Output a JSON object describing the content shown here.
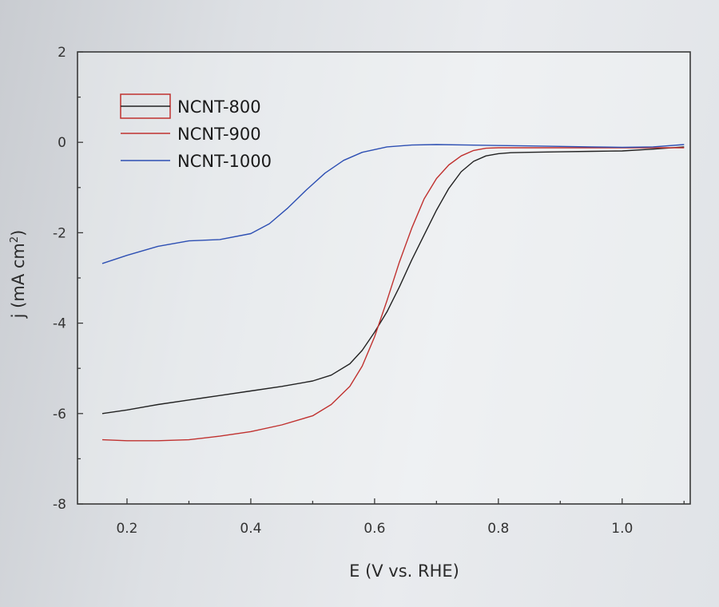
{
  "chart_data": {
    "type": "line",
    "xlabel": "E (V vs. RHE)",
    "ylabel": "j (mA cm",
    "ylabel_sup": "2",
    "ylabel_close": ")",
    "xlim": [
      0.12,
      1.11
    ],
    "ylim": [
      -8,
      2
    ],
    "xticks": [
      0.2,
      0.4,
      0.6,
      0.8,
      1.0
    ],
    "xtick_labels": [
      "0.2",
      "0.4",
      "0.6",
      "0.8",
      "1.0"
    ],
    "yticks": [
      2,
      0,
      -2,
      -4,
      -6,
      -8
    ],
    "ytick_labels": [
      "2",
      "0",
      "-2",
      "-4",
      "-6",
      "-8"
    ],
    "grid": false,
    "legend_position": "top-left",
    "series": [
      {
        "name": "NCNT-800",
        "color": "#222222",
        "x": [
          0.16,
          0.2,
          0.25,
          0.3,
          0.35,
          0.4,
          0.45,
          0.5,
          0.53,
          0.56,
          0.58,
          0.6,
          0.62,
          0.64,
          0.66,
          0.68,
          0.7,
          0.72,
          0.74,
          0.76,
          0.78,
          0.8,
          0.82,
          0.85,
          0.9,
          0.95,
          1.0,
          1.05,
          1.1
        ],
        "y": [
          -6.0,
          -5.92,
          -5.8,
          -5.7,
          -5.6,
          -5.5,
          -5.4,
          -5.28,
          -5.15,
          -4.9,
          -4.6,
          -4.2,
          -3.75,
          -3.2,
          -2.6,
          -2.05,
          -1.5,
          -1.02,
          -0.65,
          -0.42,
          -0.3,
          -0.25,
          -0.23,
          -0.22,
          -0.21,
          -0.2,
          -0.19,
          -0.15,
          -0.1
        ]
      },
      {
        "name": "NCNT-900",
        "color": "#c0312f",
        "x": [
          0.16,
          0.2,
          0.25,
          0.3,
          0.35,
          0.4,
          0.45,
          0.5,
          0.53,
          0.56,
          0.58,
          0.6,
          0.62,
          0.64,
          0.66,
          0.68,
          0.7,
          0.72,
          0.74,
          0.76,
          0.78,
          0.8,
          0.82,
          0.85,
          0.9,
          0.95,
          1.0,
          1.05,
          1.1
        ],
        "y": [
          -6.58,
          -6.6,
          -6.6,
          -6.58,
          -6.5,
          -6.4,
          -6.25,
          -6.05,
          -5.8,
          -5.4,
          -4.95,
          -4.3,
          -3.5,
          -2.65,
          -1.9,
          -1.25,
          -0.8,
          -0.5,
          -0.3,
          -0.18,
          -0.13,
          -0.12,
          -0.12,
          -0.12,
          -0.12,
          -0.12,
          -0.12,
          -0.12,
          -0.12
        ]
      },
      {
        "name": "NCNT-1000",
        "color": "#2d4fb3",
        "x": [
          0.16,
          0.2,
          0.25,
          0.3,
          0.35,
          0.4,
          0.43,
          0.46,
          0.49,
          0.52,
          0.55,
          0.58,
          0.62,
          0.66,
          0.7,
          0.75,
          0.8,
          0.85,
          0.9,
          0.95,
          1.0,
          1.05,
          1.1
        ],
        "y": [
          -2.68,
          -2.5,
          -2.3,
          -2.18,
          -2.15,
          -2.02,
          -1.8,
          -1.45,
          -1.05,
          -0.68,
          -0.4,
          -0.22,
          -0.1,
          -0.06,
          -0.05,
          -0.06,
          -0.07,
          -0.08,
          -0.09,
          -0.1,
          -0.11,
          -0.1,
          -0.05
        ]
      }
    ]
  }
}
